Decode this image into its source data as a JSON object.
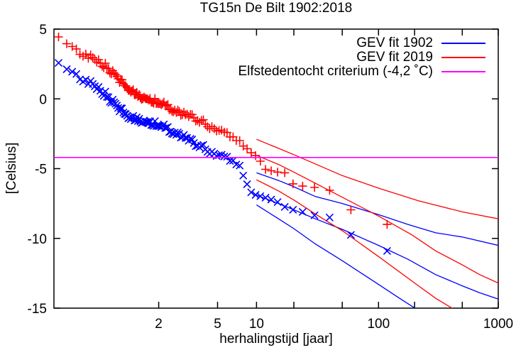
{
  "title": "TG15n De Bilt 1902:2018",
  "chart_data": {
    "type": "line",
    "title": "TG15n De Bilt 1902:2018",
    "xlabel": "herhalingstijd [jaar]",
    "ylabel": "[Celsius]",
    "x_axis": {
      "scale": "gumbel-return-period",
      "min": 1.00546,
      "max": 1000,
      "ticks": [
        {
          "v": 2,
          "label": "2"
        },
        {
          "v": 5,
          "label": "5"
        },
        {
          "v": 10,
          "label": "10"
        },
        {
          "v": 20,
          "label": ""
        },
        {
          "v": 50,
          "label": ""
        },
        {
          "v": 100,
          "label": "100"
        },
        {
          "v": 200,
          "label": ""
        },
        {
          "v": 500,
          "label": ""
        },
        {
          "v": 1000,
          "label": "1000"
        }
      ]
    },
    "y_axis": {
      "min": -15,
      "max": 5,
      "ticks": [
        {
          "v": 5,
          "label": "5"
        },
        {
          "v": 0,
          "label": "0"
        },
        {
          "v": -5,
          "label": "-5"
        },
        {
          "v": -10,
          "label": "-10"
        },
        {
          "v": -15,
          "label": "-15"
        }
      ]
    },
    "legend": [
      {
        "label": "GEV fit 1902",
        "color": "#0000ff"
      },
      {
        "label": "GEV fit 2019",
        "color": "#ff0000"
      },
      {
        "label": "Elfstedentocht criterium (-4,2 ˚C)",
        "color": "#ff00ff"
      }
    ],
    "criterium_line": {
      "value_celsius": -4.2,
      "color": "#ff00ff"
    },
    "colors": {
      "fit_1902": "#0000ff",
      "fit_2019": "#ff0000",
      "criterium": "#ff00ff"
    },
    "series": [
      {
        "name": "observations scaled to 1902",
        "kind": "scatter",
        "marker": "x",
        "color": "#0000ff",
        "n_points": 117,
        "anchors": [
          [
            1.0055,
            2.5
          ],
          [
            1.01,
            2.35
          ],
          [
            1.03,
            1.9
          ],
          [
            1.05,
            1.5
          ],
          [
            1.1,
            0.9
          ],
          [
            1.18,
            0.25
          ],
          [
            1.27,
            -0.6
          ],
          [
            1.4,
            -1.2
          ],
          [
            1.6,
            -1.5
          ],
          [
            2.0,
            -1.8
          ],
          [
            2.4,
            -2.3
          ],
          [
            2.8,
            -2.7
          ],
          [
            3.3,
            -3.15
          ],
          [
            3.9,
            -3.5
          ],
          [
            4.7,
            -3.85
          ],
          [
            5.6,
            -4.15
          ],
          [
            6.6,
            -4.5
          ],
          [
            7.3,
            -4.85
          ],
          [
            7.8,
            -5.4
          ],
          [
            8.3,
            -6.0
          ],
          [
            8.8,
            -6.6
          ],
          [
            9.5,
            -6.85
          ],
          [
            10.5,
            -6.95
          ],
          [
            11.5,
            -7.05
          ],
          [
            13.0,
            -7.2
          ],
          [
            14.8,
            -7.4
          ],
          [
            16.9,
            -7.75
          ],
          [
            19.7,
            -7.95
          ],
          [
            23.6,
            -8.1
          ],
          [
            29.5,
            -8.35
          ],
          [
            39.3,
            -8.5
          ],
          [
            59.0,
            -9.75
          ],
          [
            118.0,
            -10.9
          ]
        ]
      },
      {
        "name": "observations scaled to 2019",
        "kind": "scatter",
        "marker": "+",
        "color": "#ff0000",
        "n_points": 117,
        "anchors": [
          [
            1.0055,
            4.4
          ],
          [
            1.01,
            4.2
          ],
          [
            1.03,
            3.7
          ],
          [
            1.05,
            3.3
          ],
          [
            1.1,
            2.8
          ],
          [
            1.18,
            2.3
          ],
          [
            1.27,
            1.5
          ],
          [
            1.4,
            0.8
          ],
          [
            1.6,
            0.2
          ],
          [
            2.0,
            -0.2
          ],
          [
            2.4,
            -0.7
          ],
          [
            2.8,
            -1.1
          ],
          [
            3.3,
            -1.35
          ],
          [
            3.9,
            -1.7
          ],
          [
            4.7,
            -2.05
          ],
          [
            5.6,
            -2.4
          ],
          [
            6.6,
            -2.8
          ],
          [
            7.5,
            -3.2
          ],
          [
            8.4,
            -3.6
          ],
          [
            9.3,
            -3.95
          ],
          [
            10.0,
            -4.1
          ],
          [
            10.7,
            -4.45
          ],
          [
            11.8,
            -5.05
          ],
          [
            13.1,
            -5.15
          ],
          [
            14.8,
            -5.25
          ],
          [
            16.9,
            -5.3
          ],
          [
            19.7,
            -6.1
          ],
          [
            23.6,
            -6.25
          ],
          [
            29.5,
            -6.35
          ],
          [
            39.3,
            -6.55
          ],
          [
            59.0,
            -7.95
          ],
          [
            118.0,
            -9.0
          ]
        ]
      },
      {
        "name": "GEV fit 1902 central",
        "kind": "line",
        "color": "#0000ff",
        "points": [
          [
            10,
            -6.9
          ],
          [
            15,
            -7.5
          ],
          [
            20,
            -7.95
          ],
          [
            30,
            -8.6
          ],
          [
            50,
            -9.35
          ],
          [
            100,
            -10.5
          ],
          [
            176,
            -11.5
          ],
          [
            300,
            -12.6
          ],
          [
            500,
            -13.4
          ],
          [
            700,
            -13.9
          ],
          [
            1000,
            -14.35
          ]
        ]
      },
      {
        "name": "GEV fit 1902 upper 95% CI",
        "kind": "line",
        "color": "#0000ff",
        "points": [
          [
            10,
            -5.3
          ],
          [
            15,
            -5.85
          ],
          [
            20,
            -6.3
          ],
          [
            30,
            -7.0
          ],
          [
            50,
            -7.5
          ],
          [
            100,
            -8.3
          ],
          [
            176,
            -9.0
          ],
          [
            300,
            -9.6
          ],
          [
            500,
            -9.9
          ],
          [
            1000,
            -10.5
          ]
        ]
      },
      {
        "name": "GEV fit 1902 lower 95% CI",
        "kind": "line",
        "color": "#0000ff",
        "points": [
          [
            10,
            -7.6
          ],
          [
            15,
            -8.6
          ],
          [
            20,
            -9.3
          ],
          [
            30,
            -10.4
          ],
          [
            50,
            -11.6
          ],
          [
            100,
            -13.3
          ],
          [
            150,
            -14.3
          ],
          [
            210,
            -15.1
          ]
        ]
      },
      {
        "name": "GEV fit 2019 central",
        "kind": "line",
        "color": "#ff0000",
        "points": [
          [
            10,
            -4.05
          ],
          [
            15,
            -4.7
          ],
          [
            20,
            -5.25
          ],
          [
            30,
            -6.05
          ],
          [
            50,
            -7.05
          ],
          [
            100,
            -8.4
          ],
          [
            190,
            -9.75
          ],
          [
            300,
            -10.9
          ],
          [
            500,
            -11.9
          ],
          [
            700,
            -12.6
          ],
          [
            1000,
            -13.2
          ]
        ]
      },
      {
        "name": "GEV fit 2019 upper 95% CI",
        "kind": "line",
        "color": "#ff0000",
        "points": [
          [
            10,
            -2.9
          ],
          [
            20,
            -4.0
          ],
          [
            50,
            -5.5
          ],
          [
            100,
            -6.4
          ],
          [
            215,
            -7.3
          ],
          [
            500,
            -8.1
          ],
          [
            1000,
            -8.6
          ]
        ]
      },
      {
        "name": "GEV fit 2019 lower 95% CI",
        "kind": "line",
        "color": "#ff0000",
        "points": [
          [
            10,
            -5.8
          ],
          [
            15,
            -6.6
          ],
          [
            20,
            -7.25
          ],
          [
            30,
            -8.25
          ],
          [
            50,
            -9.45
          ],
          [
            100,
            -11.3
          ],
          [
            200,
            -13.2
          ],
          [
            300,
            -14.3
          ],
          [
            430,
            -15.1
          ]
        ]
      }
    ]
  }
}
